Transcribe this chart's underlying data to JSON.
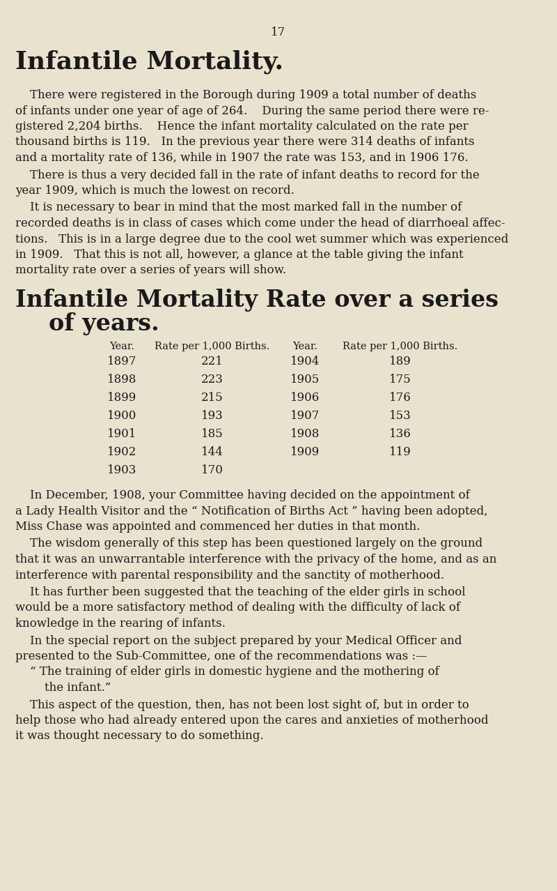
{
  "page_number": "17",
  "background_color": "#e8e2ce",
  "text_color": "#1a1a1a",
  "main_title": "Infantile Mortality.",
  "section_title_line1": "Infantile Mortality Rate over a series",
  "section_title_line2": "of years.",
  "table_left": [
    [
      "1897",
      "221"
    ],
    [
      "1898",
      "223"
    ],
    [
      "1899",
      "215"
    ],
    [
      "1900",
      "193"
    ],
    [
      "1901",
      "185"
    ],
    [
      "1902",
      "144"
    ],
    [
      "1903",
      "170"
    ]
  ],
  "table_right": [
    [
      "1904",
      "189"
    ],
    [
      "1905",
      "175"
    ],
    [
      "1906",
      "176"
    ],
    [
      "1907",
      "153"
    ],
    [
      "1908",
      "136"
    ],
    [
      "1909",
      "119"
    ]
  ],
  "p1_lines": [
    "    There were registered in the Borough during 1909 a total number of deaths",
    "of infants under one year of age of 264.    During the same period there were re-",
    "gistered 2,204 births.    Hence the infant mortality calculated on the rate per",
    "thousand births is 119.   In the previous year there were 314 deaths of infants",
    "and a mortality rate of 136, while in 1907 the rate was 153, and in 1906 176."
  ],
  "p2_lines": [
    "    There is thus a very decided fall in the rate of infant deaths to record for the",
    "year 1909, which is much the lowest on record."
  ],
  "p3_lines": [
    "    It is necessary to bear in mind that the most marked fall in the number of",
    "recorded deaths is in class of cases which come under the head of diarrħoeal affec-",
    "tions.   This is in a large degree due to the cool wet summer which was experienced",
    "in 1909.   That this is not all, however, a glance at the table giving the infant",
    "mortality rate over a series of years will show."
  ],
  "p4_lines": [
    "    In December, 1908, your Committee having decided on the appointment of",
    "a Lady Health Visitor and the “ Notification of Births Act ” having been adopted,",
    "Miss Chase was appointed and commenced her duties in that month."
  ],
  "p5_lines": [
    "    The wisdom generally of this step has been questioned largely on the ground",
    "that it was an unwarrantable interference with the privacy of the home, and as an",
    "interference with parental responsibility and the sanctity of motherhood."
  ],
  "p6_lines": [
    "    It has further been suggested that the teaching of the elder girls in school",
    "would be a more satisfactory method of dealing with the difficulty of lack of",
    "knowledge in the rearing of infants."
  ],
  "p7_lines": [
    "    In the special report on the subject prepared by your Medical Officer and",
    "presented to the Sub-Committee, one of the recommendations was :—"
  ],
  "quote_lines": [
    "    “ The training of elder girls in domestic hygiene and the mothering of",
    "        the infant.”"
  ],
  "p8_lines": [
    "    This aspect of the question, then, has not been lost sight of, but in order to",
    "help those who had already entered upon the cares and anxieties of motherhood",
    "it was thought necessary to do something."
  ]
}
